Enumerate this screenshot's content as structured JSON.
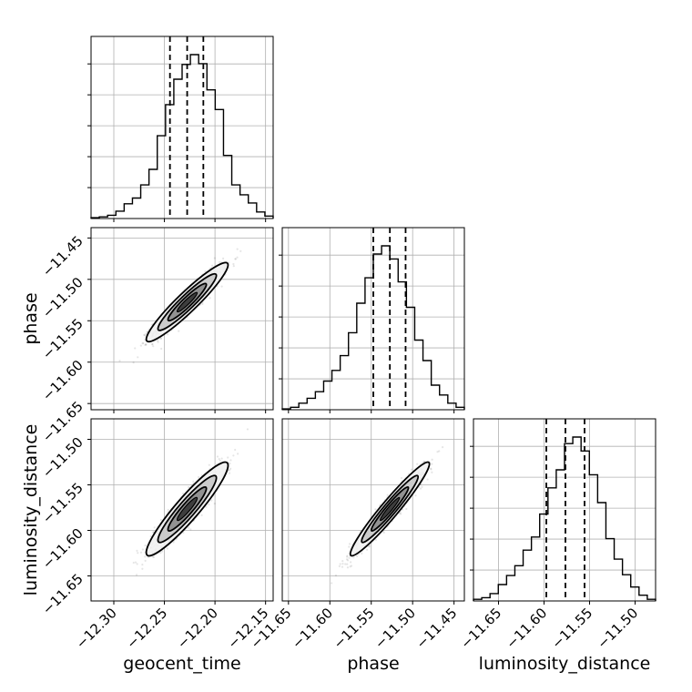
{
  "chart_data": {
    "type": "corner",
    "parameters": [
      "geocent_time",
      "phase",
      "luminosity_distance"
    ],
    "axis_labels": {
      "geocent_time": "geocent_time",
      "phase": "phase",
      "luminosity_distance": "luminosity_distance"
    },
    "ranges": {
      "geocent_time": [
        -12.3225,
        -12.1425
      ],
      "phase": [
        -11.6575,
        -11.4375
      ],
      "luminosity_distance": [
        -11.6775,
        -11.4775
      ]
    },
    "ticks": {
      "geocent_time": [
        "−12.30",
        "−12.25",
        "−12.20",
        "−12.15"
      ],
      "phase": [
        "−11.65",
        "−11.60",
        "−11.55",
        "−11.50",
        "−11.45"
      ],
      "luminosity_distance": [
        "−11.65",
        "−11.60",
        "−11.55",
        "−11.50"
      ]
    },
    "tick_values": {
      "geocent_time": [
        -12.3,
        -12.25,
        -12.2,
        -12.15
      ],
      "phase": [
        -11.65,
        -11.6,
        -11.55,
        -11.5,
        -11.45
      ],
      "luminosity_distance": [
        -11.65,
        -11.6,
        -11.55,
        -11.5
      ]
    },
    "quantiles": {
      "geocent_time": [
        -12.2445,
        -12.2275,
        -12.2115
      ],
      "phase": [
        -11.5475,
        -11.5275,
        -11.5085
      ],
      "luminosity_distance": [
        -11.5975,
        -11.5765,
        -11.5555
      ]
    },
    "histograms": {
      "geocent_time": [
        0.005,
        0.01,
        0.02,
        0.045,
        0.09,
        0.125,
        0.205,
        0.3,
        0.505,
        0.695,
        0.85,
        0.94,
        1.0,
        0.945,
        0.785,
        0.665,
        0.385,
        0.205,
        0.145,
        0.095,
        0.04,
        0.015
      ],
      "phase": [
        0.005,
        0.015,
        0.04,
        0.07,
        0.11,
        0.175,
        0.24,
        0.33,
        0.47,
        0.65,
        0.805,
        0.95,
        1.0,
        0.92,
        0.78,
        0.625,
        0.425,
        0.3,
        0.15,
        0.09,
        0.04,
        0.015
      ],
      "luminosity_distance": [
        0.01,
        0.02,
        0.045,
        0.1,
        0.155,
        0.215,
        0.31,
        0.39,
        0.53,
        0.69,
        0.8,
        0.96,
        1.0,
        0.915,
        0.77,
        0.6,
        0.38,
        0.255,
        0.16,
        0.085,
        0.035,
        0.01
      ]
    },
    "correlations": {
      "phase|geocent_time": 0.94,
      "luminosity_distance|geocent_time": 0.93,
      "luminosity_distance|phase": 0.96
    },
    "grid": true
  }
}
